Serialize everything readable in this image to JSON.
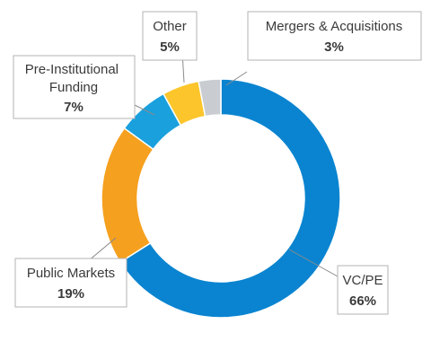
{
  "chart_data": {
    "type": "pie",
    "donut": true,
    "categories": [
      "VC/PE",
      "Public Markets",
      "Pre-Institutional Funding",
      "Other",
      "Mergers & Acquisitions"
    ],
    "values": [
      66,
      19,
      7,
      5,
      3
    ],
    "value_labels": [
      "66%",
      "19%",
      "7%",
      "5%",
      "3%"
    ],
    "colors": [
      "#0a84d0",
      "#f5a01e",
      "#1aa0dd",
      "#fcc52b",
      "#c9cdd1"
    ],
    "legend": "callouts"
  }
}
